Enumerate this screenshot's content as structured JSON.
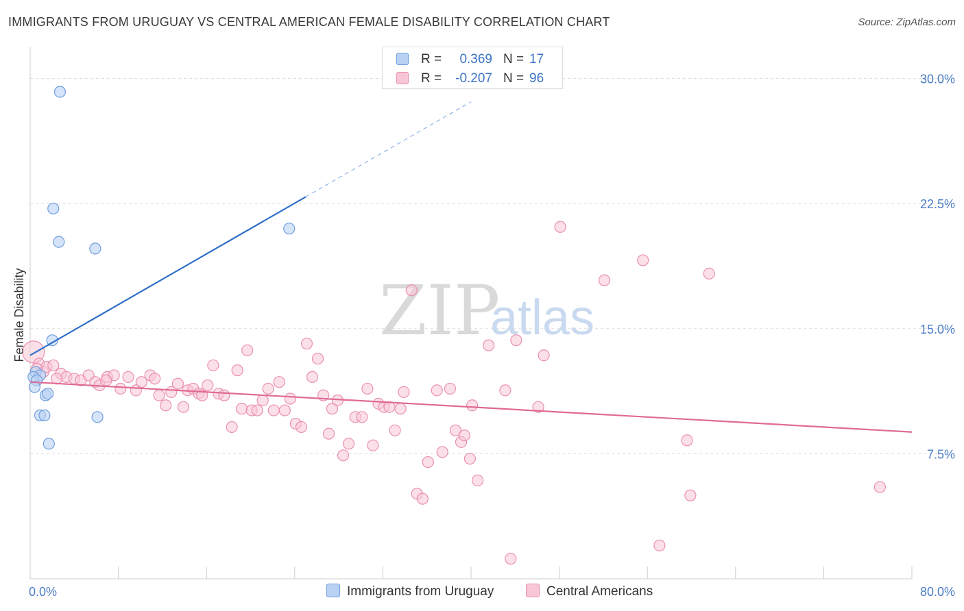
{
  "title": "IMMIGRANTS FROM URUGUAY VS CENTRAL AMERICAN FEMALE DISABILITY CORRELATION CHART",
  "source": "Source: ZipAtlas.com",
  "watermark": {
    "zip": "ZIP",
    "atlas": "atlas"
  },
  "colors": {
    "uruguay_fill": "#b9d2f4",
    "uruguay_stroke": "#6f9ee0",
    "uruguay_line": "#2f6fc9",
    "central_fill": "#f8c6d6",
    "central_stroke": "#eb8fb0",
    "central_line": "#e06a96",
    "grid": "#dddddd",
    "axis_text": "#4a7cc8"
  },
  "legend": {
    "rows": [
      {
        "r_label": "R =",
        "r_value": "0.369",
        "n_label": "N =",
        "n_value": "17"
      },
      {
        "r_label": "R =",
        "r_value": "-0.207",
        "n_label": "N =",
        "n_value": "96"
      }
    ]
  },
  "bottom_legend": {
    "uruguay": "Immigrants from Uruguay",
    "central": "Central Americans"
  },
  "chart_data": {
    "type": "scatter",
    "xlabel": "",
    "ylabel": "Female Disability",
    "xlim": [
      0,
      80
    ],
    "ylim": [
      0,
      31.5
    ],
    "x_tick_labels": [
      "0.0%",
      "80.0%"
    ],
    "y_ticks": [
      7.5,
      15.0,
      22.5,
      30.0
    ],
    "y_tick_labels": [
      "7.5%",
      "15.0%",
      "22.5%",
      "30.0%"
    ],
    "grid": true,
    "series": [
      {
        "name": "Immigrants from Uruguay",
        "trend": {
          "x0": 0,
          "y0": 13.4,
          "x1": 25,
          "y1": 22.9,
          "dash_to_x": 40,
          "dash_to_y": 28.6
        },
        "points": [
          [
            2.7,
            29.2
          ],
          [
            2.1,
            22.2
          ],
          [
            2.6,
            20.2
          ],
          [
            5.9,
            19.8
          ],
          [
            23.5,
            21.0
          ],
          [
            2.0,
            14.3
          ],
          [
            0.5,
            12.4
          ],
          [
            0.9,
            12.2
          ],
          [
            0.3,
            12.1
          ],
          [
            0.6,
            11.9
          ],
          [
            0.4,
            11.5
          ],
          [
            1.4,
            11.0
          ],
          [
            1.6,
            11.1
          ],
          [
            0.9,
            9.8
          ],
          [
            1.3,
            9.8
          ],
          [
            6.1,
            9.7
          ],
          [
            1.7,
            8.1
          ]
        ]
      },
      {
        "name": "Central Americans",
        "trend": {
          "x0": 0,
          "y0": 11.8,
          "x1": 80,
          "y1": 8.8
        },
        "points": [
          [
            0.3,
            13.6
          ],
          [
            0.8,
            12.9
          ],
          [
            1.2,
            12.4
          ],
          [
            1.5,
            12.7
          ],
          [
            2.1,
            12.8
          ],
          [
            2.8,
            12.3
          ],
          [
            3.3,
            12.1
          ],
          [
            4.0,
            12.0
          ],
          [
            4.6,
            11.9
          ],
          [
            5.3,
            12.2
          ],
          [
            5.9,
            11.8
          ],
          [
            6.3,
            11.6
          ],
          [
            7.0,
            12.1
          ],
          [
            7.6,
            12.2
          ],
          [
            8.2,
            11.4
          ],
          [
            8.9,
            12.1
          ],
          [
            9.6,
            11.3
          ],
          [
            10.1,
            11.8
          ],
          [
            10.9,
            12.2
          ],
          [
            11.3,
            12.0
          ],
          [
            11.7,
            11.0
          ],
          [
            12.3,
            10.4
          ],
          [
            12.8,
            11.2
          ],
          [
            13.4,
            11.7
          ],
          [
            13.9,
            10.3
          ],
          [
            14.3,
            11.3
          ],
          [
            14.8,
            11.4
          ],
          [
            15.3,
            11.1
          ],
          [
            15.6,
            11.0
          ],
          [
            16.1,
            11.6
          ],
          [
            16.6,
            12.8
          ],
          [
            17.1,
            11.1
          ],
          [
            17.6,
            11.0
          ],
          [
            18.3,
            9.1
          ],
          [
            18.8,
            12.5
          ],
          [
            19.2,
            10.2
          ],
          [
            19.7,
            13.7
          ],
          [
            20.1,
            10.1
          ],
          [
            20.6,
            10.1
          ],
          [
            21.1,
            10.7
          ],
          [
            21.6,
            11.4
          ],
          [
            22.1,
            10.1
          ],
          [
            22.6,
            11.8
          ],
          [
            23.1,
            10.1
          ],
          [
            23.6,
            10.8
          ],
          [
            24.1,
            9.3
          ],
          [
            24.6,
            9.1
          ],
          [
            25.1,
            14.1
          ],
          [
            25.6,
            12.1
          ],
          [
            26.1,
            13.2
          ],
          [
            26.6,
            11.0
          ],
          [
            27.1,
            8.7
          ],
          [
            27.4,
            10.2
          ],
          [
            27.9,
            10.7
          ],
          [
            28.4,
            7.4
          ],
          [
            28.9,
            8.1
          ],
          [
            29.5,
            9.7
          ],
          [
            30.1,
            9.7
          ],
          [
            30.6,
            11.4
          ],
          [
            31.1,
            8.0
          ],
          [
            31.6,
            10.5
          ],
          [
            32.1,
            10.3
          ],
          [
            32.6,
            10.3
          ],
          [
            33.1,
            8.9
          ],
          [
            33.6,
            10.2
          ],
          [
            33.9,
            11.2
          ],
          [
            34.6,
            17.3
          ],
          [
            35.1,
            5.1
          ],
          [
            35.6,
            4.8
          ],
          [
            36.1,
            7.0
          ],
          [
            36.9,
            11.3
          ],
          [
            37.4,
            7.6
          ],
          [
            38.1,
            11.4
          ],
          [
            38.6,
            8.9
          ],
          [
            39.1,
            8.2
          ],
          [
            39.4,
            8.6
          ],
          [
            39.9,
            7.2
          ],
          [
            40.6,
            5.9
          ],
          [
            40.1,
            10.4
          ],
          [
            41.6,
            14.0
          ],
          [
            43.1,
            11.3
          ],
          [
            43.6,
            1.2
          ],
          [
            44.1,
            14.3
          ],
          [
            46.1,
            10.3
          ],
          [
            46.6,
            13.4
          ],
          [
            48.1,
            21.1
          ],
          [
            52.1,
            17.9
          ],
          [
            55.6,
            19.1
          ],
          [
            57.1,
            2.0
          ],
          [
            59.6,
            8.3
          ],
          [
            59.9,
            5.0
          ],
          [
            61.6,
            18.3
          ],
          [
            77.1,
            5.5
          ],
          [
            0.6,
            12.6
          ],
          [
            2.4,
            12.0
          ],
          [
            6.9,
            11.9
          ]
        ]
      }
    ]
  }
}
